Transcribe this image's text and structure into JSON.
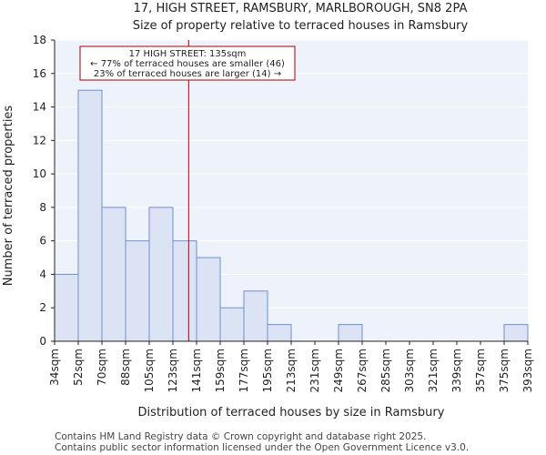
{
  "chart_data": {
    "type": "bar",
    "title_line1": "17, HIGH STREET, RAMSBURY, MARLBOROUGH, SN8 2PA",
    "title_line2": "Size of property relative to terraced houses in Ramsbury",
    "xlabel": "Distribution of terraced houses by size in Ramsbury",
    "ylabel": "Number of terraced properties",
    "ylim": [
      0,
      18
    ],
    "yticks": [
      0,
      2,
      4,
      6,
      8,
      10,
      12,
      14,
      16,
      18
    ],
    "bin_edges": [
      34,
      52,
      70,
      88,
      105,
      123,
      141,
      159,
      177,
      195,
      213,
      231,
      249,
      267,
      285,
      303,
      321,
      339,
      357,
      375,
      393
    ],
    "xtick_labels": [
      "34sqm",
      "52sqm",
      "70sqm",
      "88sqm",
      "105sqm",
      "123sqm",
      "141sqm",
      "159sqm",
      "177sqm",
      "195sqm",
      "213sqm",
      "231sqm",
      "249sqm",
      "267sqm",
      "285sqm",
      "303sqm",
      "321sqm",
      "339sqm",
      "357sqm",
      "375sqm",
      "393sqm"
    ],
    "values": [
      4,
      15,
      8,
      6,
      8,
      6,
      5,
      2,
      3,
      1,
      0,
      0,
      1,
      0,
      0,
      0,
      0,
      0,
      0,
      1
    ],
    "marker_value": 135,
    "annotation": {
      "line1": "17 HIGH STREET: 135sqm",
      "line2": "← 77% of terraced houses are smaller (46)",
      "line3": "23% of terraced houses are larger (14) →"
    },
    "colors": {
      "bar_fill": "#dbe3f4",
      "bar_stroke": "#6f8fcf",
      "plot_bg": "#eef2fb",
      "grid": "#ffffff",
      "marker": "#aa0000"
    }
  },
  "footer": {
    "line1": "Contains HM Land Registry data © Crown copyright and database right 2025.",
    "line2": "Contains public sector information licensed under the Open Government Licence v3.0."
  }
}
